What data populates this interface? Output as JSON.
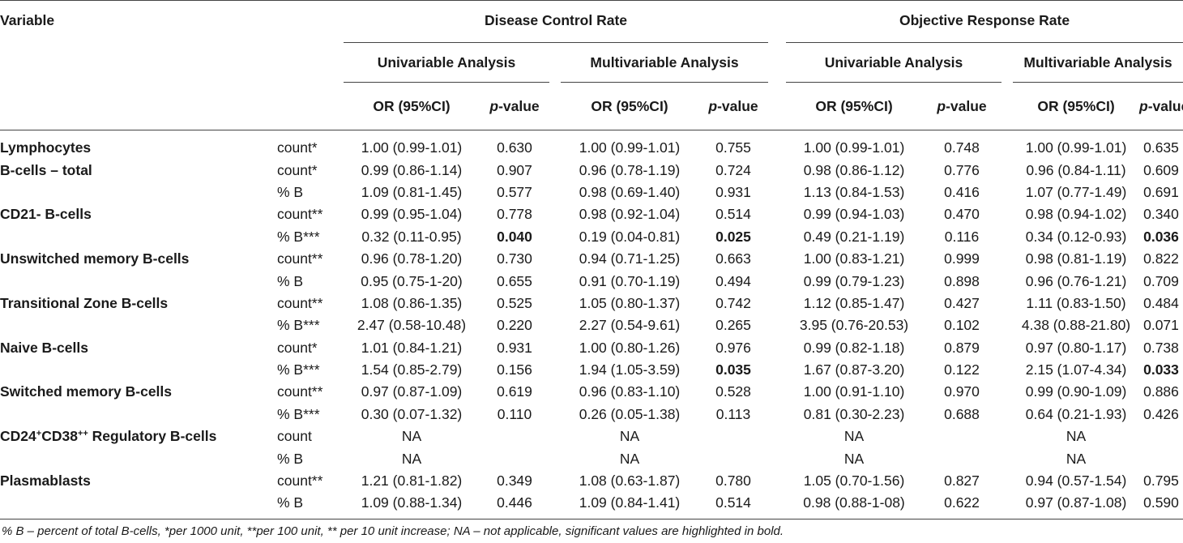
{
  "header": {
    "variable": "Variable",
    "groups": [
      "Disease Control Rate",
      "Objective Response Rate"
    ],
    "analyses": [
      "Univariable Analysis",
      "Multivariable Analysis",
      "Univariable Analysis",
      "Multivariable Analysis"
    ],
    "col_or": "OR (95%CI)",
    "col_p_italic": "p",
    "col_p_rest": "-value"
  },
  "rows": [
    {
      "var": "Lymphocytes",
      "unit": "count*",
      "vals": [
        "1.00 (0.99-1.01)",
        "0.630",
        "1.00 (0.99-1.01)",
        "0.755",
        "1.00 (0.99-1.01)",
        "0.748",
        "1.00 (0.99-1.01)",
        "0.635"
      ]
    },
    {
      "var": "B-cells – total",
      "unit": "count*",
      "vals": [
        "0.99 (0.86-1.14)",
        "0.907",
        "0.96 (0.78-1.19)",
        "0.724",
        "0.98 (0.86-1.12)",
        "0.776",
        "0.96 (0.84-1.11)",
        "0.609"
      ]
    },
    {
      "var": "",
      "unit": "% B",
      "vals": [
        "1.09 (0.81-1.45)",
        "0.577",
        "0.98 (0.69-1.40)",
        "0.931",
        "1.13 (0.84-1.53)",
        "0.416",
        "1.07 (0.77-1.49)",
        "0.691"
      ]
    },
    {
      "var": "CD21- B-cells",
      "unit": "count**",
      "vals": [
        "0.99 (0.95-1.04)",
        "0.778",
        "0.98 (0.92-1.04)",
        "0.514",
        "0.99 (0.94-1.03)",
        "0.470",
        "0.98 (0.94-1.02)",
        "0.340"
      ]
    },
    {
      "var": "",
      "unit": "% B***",
      "vals": [
        "0.32 (0.11-0.95)",
        "0.040",
        "0.19 (0.04-0.81)",
        "0.025",
        "0.49 (0.21-1.19)",
        "0.116",
        "0.34 (0.12-0.93)",
        "0.036"
      ]
    },
    {
      "var": "Unswitched memory B-cells",
      "unit": "count**",
      "vals": [
        "0.96 (0.78-1.20)",
        "0.730",
        "0.94 (0.71-1.25)",
        "0.663",
        "1.00 (0.83-1.21)",
        "0.999",
        "0.98 (0.81-1.19)",
        "0.822"
      ]
    },
    {
      "var": "",
      "unit": "% B",
      "vals": [
        "0.95 (0.75-1-20)",
        "0.655",
        "0.91 (0.70-1.19)",
        "0.494",
        "0.99 (0.79-1.23)",
        "0.898",
        "0.96 (0.76-1.21)",
        "0.709"
      ]
    },
    {
      "var": "Transitional Zone B-cells",
      "unit": "count**",
      "vals": [
        "1.08 (0.86-1.35)",
        "0.525",
        "1.05 (0.80-1.37)",
        "0.742",
        "1.12 (0.85-1.47)",
        "0.427",
        "1.11 (0.83-1.50)",
        "0.484"
      ]
    },
    {
      "var": "",
      "unit": "% B***",
      "vals": [
        "2.47 (0.58-10.48)",
        "0.220",
        "2.27 (0.54-9.61)",
        "0.265",
        "3.95 (0.76-20.53)",
        "0.102",
        "4.38 (0.88-21.80)",
        "0.071"
      ]
    },
    {
      "var": "Naive B-cells",
      "unit": "count*",
      "vals": [
        "1.01 (0.84-1.21)",
        "0.931",
        "1.00 (0.80-1.26)",
        "0.976",
        "0.99 (0.82-1.18)",
        "0.879",
        "0.97 (0.80-1.17)",
        "0.738"
      ]
    },
    {
      "var": "",
      "unit": "% B***",
      "vals": [
        "1.54 (0.85-2.79)",
        "0.156",
        "1.94 (1.05-3.59)",
        "0.035",
        "1.67 (0.87-3.20)",
        "0.122",
        "2.15 (1.07-4.34)",
        "0.033"
      ]
    },
    {
      "var": "Switched memory B-cells",
      "unit": "count**",
      "vals": [
        "0.97 (0.87-1.09)",
        "0.619",
        "0.96 (0.83-1.10)",
        "0.528",
        "1.00 (0.91-1.10)",
        "0.970",
        "0.99 (0.90-1.09)",
        "0.886"
      ]
    },
    {
      "var": "",
      "unit": "% B***",
      "vals": [
        "0.30 (0.07-1.32)",
        "0.110",
        "0.26 (0.05-1.38)",
        "0.113",
        "0.81 (0.30-2.23)",
        "0.688",
        "0.64 (0.21-1.93)",
        "0.426"
      ]
    },
    {
      "var": "CD24+CD38++ Regulatory B-cells",
      "unit": "count",
      "vals": [
        "NA",
        "",
        "NA",
        "",
        "NA",
        "",
        "NA",
        ""
      ]
    },
    {
      "var": "",
      "unit": "% B",
      "vals": [
        "NA",
        "",
        "NA",
        "",
        "NA",
        "",
        "NA",
        ""
      ]
    },
    {
      "var": "Plasmablasts",
      "unit": "count**",
      "vals": [
        "1.21 (0.81-1.82)",
        "0.349",
        "1.08 (0.63-1.87)",
        "0.780",
        "1.05 (0.70-1.56)",
        "0.827",
        "0.94 (0.57-1.54)",
        "0.795"
      ]
    },
    {
      "var": "",
      "unit": "% B",
      "vals": [
        "1.09 (0.88-1.34)",
        "0.446",
        "1.09 (0.84-1.41)",
        "0.514",
        "0.98 (0.88-1-08)",
        "0.622",
        "0.97 (0.87-1.08)",
        "0.590"
      ]
    }
  ],
  "regulatory_parts": {
    "a": "CD24",
    "sa": "+",
    "b": "CD38",
    "sb": "++",
    "c": " Regulatory B-cells"
  },
  "significant": [
    "0.040",
    "0.025",
    "0.036",
    "0.035",
    "0.033"
  ],
  "footnote": "% B – percent of total B-cells, *per 1000 unit, **per 100 unit, ** per 10 unit increase; NA – not applicable, significant values are highlighted in bold."
}
